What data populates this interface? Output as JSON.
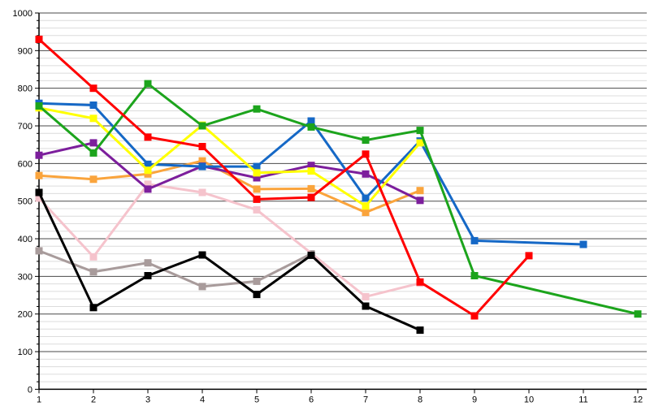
{
  "chart_data": {
    "type": "line",
    "title": "",
    "xlabel": "",
    "ylabel": "",
    "x_categories": [
      1,
      2,
      3,
      4,
      5,
      6,
      7,
      8,
      9,
      10,
      11,
      12
    ],
    "ylim": [
      0,
      1000
    ],
    "y_major_step": 100,
    "y_minor_step": 20,
    "grid": "horizontal major+minor",
    "legend_position": "none",
    "marker_shape": "square",
    "series": [
      {
        "name": "gray",
        "color": "#A89B9B",
        "values": [
          368,
          312,
          336,
          273,
          287,
          360,
          null,
          null,
          null,
          null,
          null,
          null
        ]
      },
      {
        "name": "pink",
        "color": "#F5C3CC",
        "values": [
          508,
          352,
          545,
          523,
          477,
          null,
          246,
          282,
          null,
          null,
          null,
          null
        ]
      },
      {
        "name": "black",
        "color": "#000000",
        "values": [
          523,
          217,
          302,
          357,
          252,
          356,
          221,
          157,
          null,
          null,
          null,
          null
        ]
      },
      {
        "name": "orange",
        "color": "#FAA43C",
        "values": [
          568,
          558,
          572,
          607,
          532,
          533,
          470,
          528,
          null,
          null,
          null,
          null
        ]
      },
      {
        "name": "purple",
        "color": "#7C1E9C",
        "values": [
          622,
          655,
          532,
          593,
          562,
          595,
          572,
          502,
          null,
          null,
          null,
          null
        ]
      },
      {
        "name": "blue",
        "color": "#1568C6",
        "values": [
          760,
          755,
          598,
          592,
          592,
          713,
          508,
          660,
          395,
          null,
          385,
          null
        ]
      },
      {
        "name": "yellow",
        "color": "#FFFF00",
        "values": [
          748,
          720,
          582,
          702,
          575,
          580,
          487,
          655,
          null,
          null,
          null,
          null
        ]
      },
      {
        "name": "green",
        "color": "#1CA41C",
        "values": [
          753,
          628,
          812,
          700,
          745,
          697,
          662,
          688,
          302,
          null,
          null,
          200
        ]
      },
      {
        "name": "red",
        "color": "#FF0000",
        "values": [
          930,
          800,
          670,
          645,
          505,
          510,
          625,
          285,
          195,
          355,
          null,
          null
        ]
      }
    ]
  },
  "axes": {
    "y_tick_labels": [
      "0",
      "100",
      "200",
      "300",
      "400",
      "500",
      "600",
      "700",
      "800",
      "900",
      "1000"
    ],
    "x_tick_labels": [
      "1",
      "2",
      "3",
      "4",
      "5",
      "6",
      "7",
      "8",
      "9",
      "10",
      "11",
      "12"
    ]
  },
  "style_colors": {
    "background": "#FFFFFF",
    "axis_line": "#000000",
    "grid_major": "#4A4A4A",
    "grid_minor": "#DCDCDC",
    "tick_label": "#000000"
  }
}
